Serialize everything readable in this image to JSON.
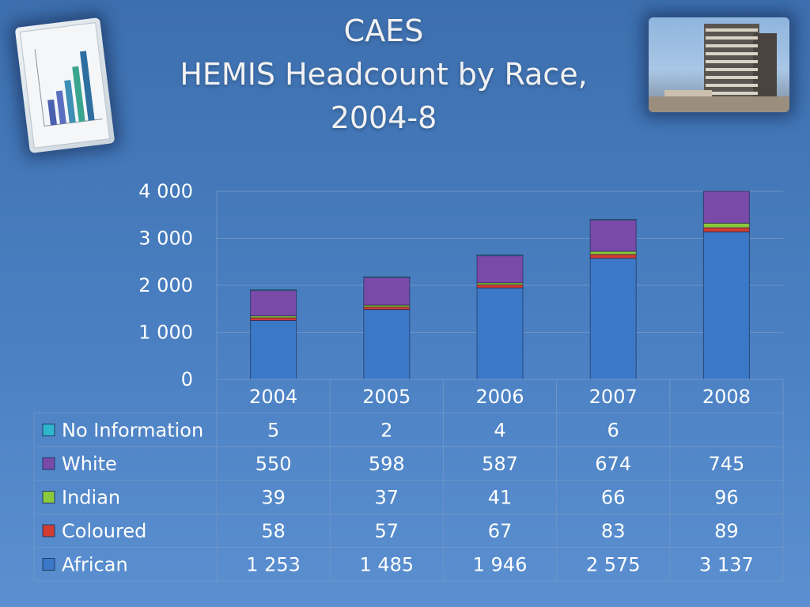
{
  "title": {
    "line1": "CAES",
    "line2": "HEMIS Headcount by Race,",
    "line3": "2004-8"
  },
  "icons": {
    "left_image": "bar-chart-paper-icon",
    "right_image": "office-building-icon"
  },
  "chart_data": {
    "type": "bar",
    "stacked": true,
    "categories": [
      "2004",
      "2005",
      "2006",
      "2007",
      "2008"
    ],
    "ylim": [
      0,
      4000
    ],
    "yticks": [
      0,
      1000,
      2000,
      3000,
      4000
    ],
    "ytick_labels": [
      "0",
      "1 000",
      "2 000",
      "3 000",
      "4 000"
    ],
    "grid": true,
    "legend": "data table",
    "series": [
      {
        "name": "African",
        "color": "#3c78c8",
        "values": [
          1253,
          1485,
          1946,
          2575,
          3137
        ],
        "labels": [
          "1 253",
          "1 485",
          "1 946",
          "2 575",
          "3 137"
        ]
      },
      {
        "name": "Coloured",
        "color": "#d23c32",
        "values": [
          58,
          57,
          67,
          83,
          89
        ],
        "labels": [
          "58",
          "57",
          "67",
          "83",
          "89"
        ]
      },
      {
        "name": "Indian",
        "color": "#8cc83c",
        "values": [
          39,
          37,
          41,
          66,
          96
        ],
        "labels": [
          "39",
          "37",
          "41",
          "66",
          "96"
        ]
      },
      {
        "name": "White",
        "color": "#7a4aa8",
        "values": [
          550,
          598,
          587,
          674,
          745
        ],
        "labels": [
          "550",
          "598",
          "587",
          "674",
          "745"
        ]
      },
      {
        "name": "No Information",
        "color": "#2fb6cc",
        "values": [
          5,
          2,
          4,
          6,
          0
        ],
        "labels": [
          "5",
          "2",
          "4",
          "6",
          ""
        ]
      }
    ]
  }
}
